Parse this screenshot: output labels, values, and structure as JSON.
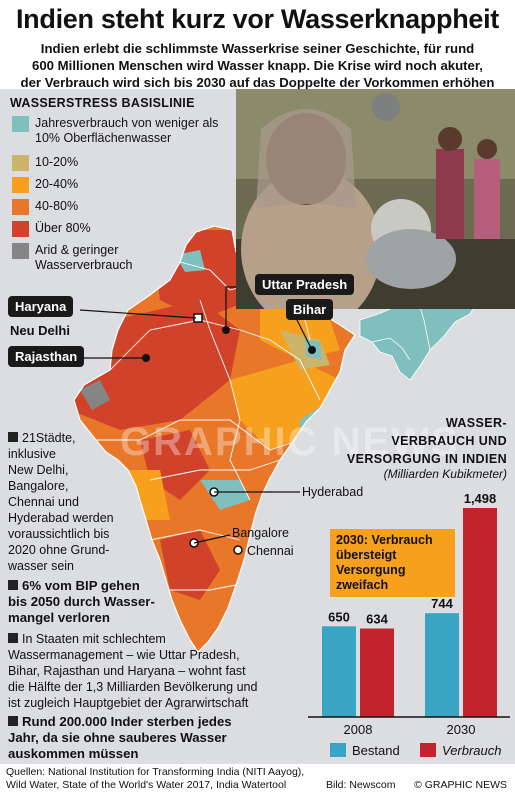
{
  "title": "Indien steht kurz vor Wasserknappheit",
  "subtitle_lines": [
    "Indien erlebt die schlimmste Wasserkrise seiner Geschichte, für rund",
    "600 Millionen Menschen wird Wasser knapp. Die Krise wird noch akuter,",
    "der Verbrauch wird sich bis 2030 auf das Doppelte der Vorkommen erhöhen"
  ],
  "legend": {
    "title": "Wasserstress Basislinie",
    "items": [
      {
        "label": "Jahresverbrauch von weniger als 10% Oberflächenwasser",
        "color": "#7fbfbd"
      },
      {
        "label": "10-20%",
        "color": "#cdb46b"
      },
      {
        "label": "20-40%",
        "color": "#f6a01e"
      },
      {
        "label": "40-80%",
        "color": "#e9772a"
      },
      {
        "label": "Über 80%",
        "color": "#d0432a"
      },
      {
        "label": "Arid & geringer Wasserverbrauch",
        "color": "#858585"
      }
    ]
  },
  "map": {
    "states": {
      "uttar_pradesh": "Uttar Pradesh",
      "bihar": "Bihar",
      "haryana": "Haryana",
      "rajasthan": "Rajasthan"
    },
    "cities": {
      "delhi": "Neu Delhi",
      "hyderabad": "Hyderabad",
      "bangalore": "Bangalore",
      "chennai": "Chennai"
    }
  },
  "facts": {
    "f1_lines": [
      "21Städte,",
      "inklusive",
      "New Delhi,",
      "Bangalore,",
      "Chennai und",
      "Hyderabad werden",
      "voraussichtlich bis",
      "2020 ohne Grund-",
      "wasser sein"
    ],
    "f2_lines": [
      "6% vom BIP gehen",
      "bis 2050 durch Wasser-",
      "mangel verloren"
    ],
    "f3_lines": [
      "In Staaten mit schlechtem",
      "Wassermanagement – wie Uttar Pradesh,",
      "Bihar, Rajasthan und Haryana – wohnt fast",
      "die Hälfte der 1,3 Milliarden Bevölkerung und",
      "ist zugleich Hauptgebiet der Agrarwirtschaft"
    ],
    "f4_lines": [
      "Rund 200.000 Inder sterben jedes",
      "Jahr, da sie ohne sauberes Wasser",
      "auskommen müssen"
    ]
  },
  "chart_data": {
    "type": "bar",
    "title_lines": [
      "Wasser-",
      "verbrauch und",
      "Versorgung in Indien"
    ],
    "subtitle": "(Milliarden Kubikmeter)",
    "categories": [
      "2008",
      "2030"
    ],
    "series": [
      {
        "name": "Bestand",
        "values": [
          650,
          744
        ],
        "color": "#3aa4c4"
      },
      {
        "name": "Verbrauch",
        "values": [
          634,
          1498
        ],
        "color": "#c2242e"
      }
    ],
    "value_labels": [
      "650",
      "634",
      "744",
      "1,498"
    ],
    "ylim": [
      0,
      1498
    ],
    "annotation": "2030: Verbrauch übersteigt Versorgung zweifach"
  },
  "footer": {
    "sources_lines": [
      "Quellen: National Institution for Transforming India (NITI Aayog),",
      "Wild Water, State of the World's Water 2017, India Watertool"
    ],
    "credit": "Bild: Newscom",
    "brand": "© GRAPHIC NEWS"
  }
}
